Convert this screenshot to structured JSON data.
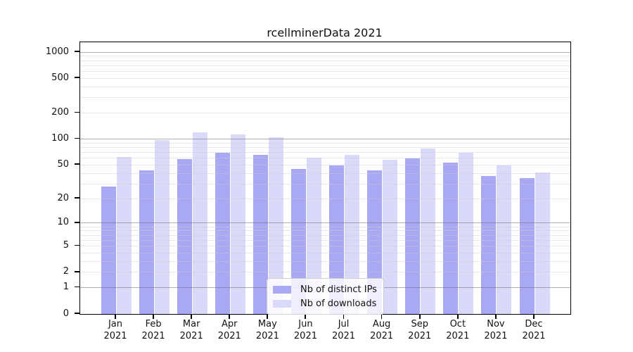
{
  "title": "rcellminerData 2021",
  "chart_data": {
    "type": "bar",
    "title": "rcellminerData 2021",
    "scale": "log1p",
    "categories": [
      "Jan",
      "Feb",
      "Mar",
      "Apr",
      "May",
      "Jun",
      "Jul",
      "Aug",
      "Sep",
      "Oct",
      "Nov",
      "Dec"
    ],
    "category_year": "2021",
    "series": [
      {
        "name": "Nb of distinct IPs",
        "color": "#a8a8f3",
        "values": [
          28,
          43,
          59,
          69,
          65,
          45,
          49,
          43,
          60,
          53,
          37,
          35
        ]
      },
      {
        "name": "Nb of downloads",
        "color": "#d9d9f9",
        "values": [
          62,
          98,
          120,
          113,
          104,
          61,
          66,
          58,
          78,
          69,
          49,
          41
        ]
      }
    ],
    "yticks": [
      0,
      1,
      2,
      5,
      10,
      20,
      50,
      100,
      200,
      500,
      1000
    ],
    "major_grid_values": [
      1,
      10,
      100,
      1000
    ],
    "ylim": [
      0,
      1300
    ],
    "grid": true,
    "legend_position": "lower center",
    "colors": {
      "axis": "#000000",
      "major_grid": "#6e6e6e",
      "minor_grid": "#cdcdcd",
      "background": "#ffffff"
    }
  }
}
